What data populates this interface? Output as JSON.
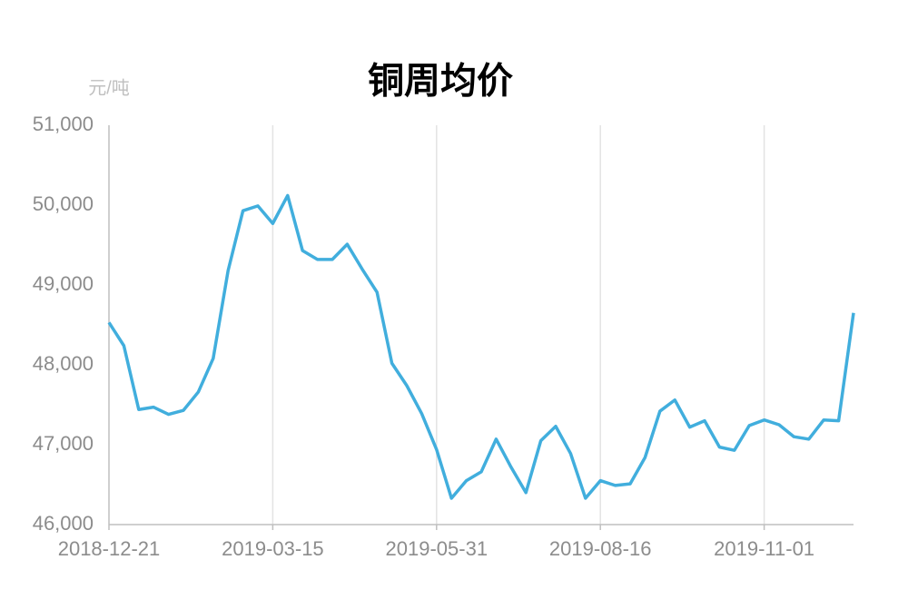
{
  "chart_data": {
    "type": "line",
    "title": "铜周均价",
    "y_axis_label": "元/吨",
    "categories": [
      "2018-12-21",
      null,
      null,
      null,
      null,
      null,
      null,
      null,
      null,
      null,
      null,
      "2019-03-15",
      null,
      null,
      null,
      null,
      null,
      null,
      null,
      null,
      null,
      null,
      "2019-05-31",
      null,
      null,
      null,
      null,
      null,
      null,
      null,
      null,
      null,
      null,
      "2019-08-16",
      null,
      null,
      null,
      null,
      null,
      null,
      null,
      null,
      null,
      null,
      "2019-11-01",
      null,
      null,
      null,
      null,
      null,
      null
    ],
    "series": [
      {
        "name": "铜周均价",
        "color": "#41aedd",
        "values": [
          48530,
          48240,
          47440,
          47470,
          47380,
          47430,
          47660,
          48080,
          49180,
          49930,
          49990,
          49770,
          50120,
          49430,
          49320,
          49320,
          49510,
          49200,
          48910,
          48020,
          47740,
          47390,
          46940,
          46330,
          46550,
          46660,
          47070,
          46720,
          46400,
          47050,
          47230,
          46890,
          46330,
          46550,
          46490,
          46510,
          46840,
          47420,
          47560,
          47220,
          47300,
          46970,
          46930,
          47240,
          47310,
          47250,
          47100,
          47070,
          47310,
          47300,
          48650
        ]
      }
    ],
    "ylim": [
      46000,
      51000
    ],
    "yticks": [
      {
        "value": 46000,
        "label": "46,000"
      },
      {
        "value": 47000,
        "label": "47,000"
      },
      {
        "value": 48000,
        "label": "48,000"
      },
      {
        "value": 49000,
        "label": "49,000"
      },
      {
        "value": 50000,
        "label": "50,000"
      },
      {
        "value": 51000,
        "label": "51,000"
      }
    ],
    "grid": true
  }
}
